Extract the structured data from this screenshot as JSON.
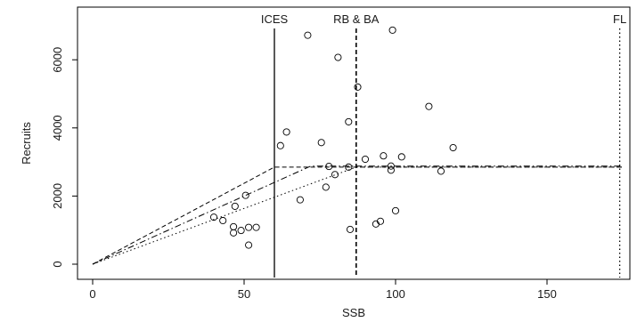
{
  "chart_data": {
    "type": "scatter",
    "xlabel": "SSB",
    "ylabel": "Recruits",
    "xlim": [
      0,
      175
    ],
    "ylim": [
      0,
      7000
    ],
    "xticks": [
      0,
      50,
      100,
      150
    ],
    "yticks": [
      0,
      2000,
      4000,
      6000
    ],
    "x_tick_labels": [
      "0",
      "50",
      "100",
      "150"
    ],
    "y_tick_labels": [
      "0",
      "2000",
      "4000",
      "6000"
    ],
    "grid": false,
    "reference_lines": [
      {
        "label": "ICES",
        "x": 60,
        "style": "solid"
      },
      {
        "label": "RB & BA",
        "x": 87,
        "style": "dashed"
      },
      {
        "label": "FL",
        "x": 174,
        "style": "dotted"
      }
    ],
    "points": [
      [
        40,
        1380
      ],
      [
        43,
        1280
      ],
      [
        46.5,
        1100
      ],
      [
        46.5,
        920
      ],
      [
        47,
        1700
      ],
      [
        49,
        990
      ],
      [
        50.5,
        2020
      ],
      [
        51.5,
        1080
      ],
      [
        51.5,
        560
      ],
      [
        54,
        1080
      ],
      [
        62,
        3480
      ],
      [
        64,
        3880
      ],
      [
        68.5,
        1890
      ],
      [
        71,
        6720
      ],
      [
        75.5,
        3570
      ],
      [
        77,
        2260
      ],
      [
        78,
        2870
      ],
      [
        80,
        2630
      ],
      [
        81,
        6070
      ],
      [
        84.5,
        2850
      ],
      [
        84.5,
        4180
      ],
      [
        85,
        1020
      ],
      [
        87.5,
        5200
      ],
      [
        90,
        3080
      ],
      [
        93.5,
        1180
      ],
      [
        95,
        1260
      ],
      [
        96,
        3180
      ],
      [
        98.5,
        2880
      ],
      [
        98.5,
        2760
      ],
      [
        99,
        6870
      ],
      [
        100,
        1570
      ],
      [
        102,
        3150
      ],
      [
        111,
        4630
      ],
      [
        115,
        2730
      ],
      [
        119,
        3420
      ]
    ],
    "series": [
      {
        "style": "dashed",
        "x": [
          0,
          60,
          175
        ],
        "y": [
          0,
          2850,
          2850
        ]
      },
      {
        "style": "dashdot",
        "x": [
          0,
          60,
          72,
          175
        ],
        "y": [
          0,
          2400,
          2880,
          2880
        ]
      },
      {
        "style": "dotted",
        "x": [
          0,
          87,
          175
        ],
        "y": [
          0,
          2850,
          2850
        ]
      }
    ]
  }
}
